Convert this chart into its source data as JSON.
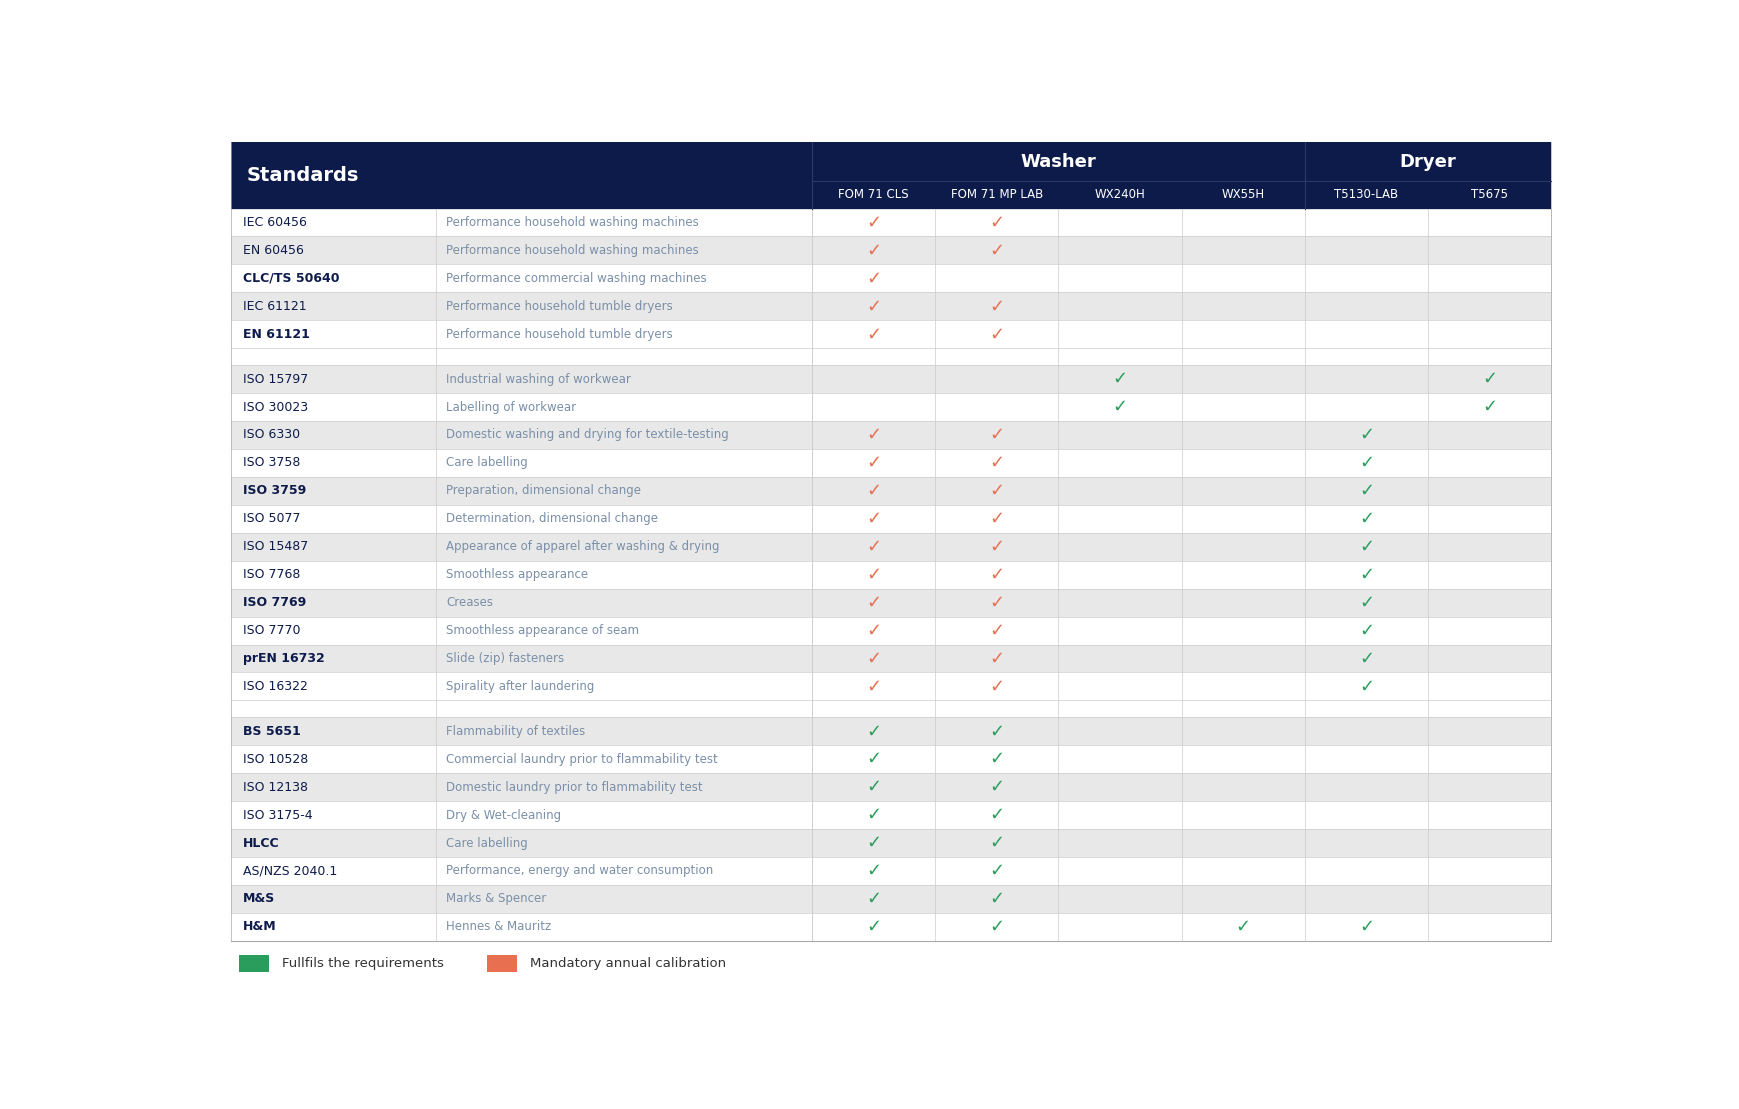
{
  "title_bg": "#0d1b4b",
  "title_text_color": "#ffffff",
  "header_text": "Standards",
  "washer_label": "Washer",
  "dryer_label": "Dryer",
  "col_headers": [
    "FOM 71 CLS",
    "FOM 71 MP LAB",
    "WX240H",
    "WX55H",
    "T5130-LAB",
    "T5675"
  ],
  "row_bg_shaded": "#e8e8e8",
  "row_bg_white": "#ffffff",
  "green_check": "#2a9d5c",
  "orange_check": "#e87050",
  "text_dark": "#0d1b4b",
  "text_desc": "#7a8fa8",
  "rows": [
    {
      "std": "IEC 60456",
      "desc": "Performance household washing machines",
      "checks": [
        "O",
        "O",
        "",
        "",
        "",
        ""
      ],
      "bold": false,
      "sep": false,
      "shade": false
    },
    {
      "std": "EN 60456",
      "desc": "Performance household washing machines",
      "checks": [
        "O",
        "O",
        "",
        "",
        "",
        ""
      ],
      "bold": false,
      "sep": false,
      "shade": true
    },
    {
      "std": "CLC/TS 50640",
      "desc": "Performance commercial washing machines",
      "checks": [
        "O",
        "",
        "",
        "",
        "",
        ""
      ],
      "bold": true,
      "sep": false,
      "shade": false
    },
    {
      "std": "IEC 61121",
      "desc": "Performance household tumble dryers",
      "checks": [
        "O",
        "O",
        "",
        "",
        "",
        ""
      ],
      "bold": false,
      "sep": false,
      "shade": true
    },
    {
      "std": "EN 61121",
      "desc": "Performance household tumble dryers",
      "checks": [
        "O",
        "O",
        "",
        "",
        "",
        ""
      ],
      "bold": true,
      "sep": false,
      "shade": false
    },
    {
      "std": "",
      "desc": "",
      "checks": [
        "",
        "",
        "",
        "",
        "",
        ""
      ],
      "bold": false,
      "sep": true,
      "shade": false
    },
    {
      "std": "ISO 15797",
      "desc": "Industrial washing of workwear",
      "checks": [
        "",
        "",
        "G",
        "",
        "",
        "G"
      ],
      "bold": false,
      "sep": false,
      "shade": true
    },
    {
      "std": "ISO 30023",
      "desc": "Labelling of workwear",
      "checks": [
        "",
        "",
        "G",
        "",
        "",
        "G"
      ],
      "bold": false,
      "sep": false,
      "shade": false
    },
    {
      "std": "ISO 6330",
      "desc": "Domestic washing and drying for textile-testing",
      "checks": [
        "O",
        "O",
        "",
        "",
        "G",
        ""
      ],
      "bold": false,
      "sep": false,
      "shade": true
    },
    {
      "std": "ISO 3758",
      "desc": "Care labelling",
      "checks": [
        "O",
        "O",
        "",
        "",
        "G",
        ""
      ],
      "bold": false,
      "sep": false,
      "shade": false
    },
    {
      "std": "ISO 3759",
      "desc": "Preparation, dimensional change",
      "checks": [
        "O",
        "O",
        "",
        "",
        "G",
        ""
      ],
      "bold": true,
      "sep": false,
      "shade": true
    },
    {
      "std": "ISO 5077",
      "desc": "Determination, dimensional change",
      "checks": [
        "O",
        "O",
        "",
        "",
        "G",
        ""
      ],
      "bold": false,
      "sep": false,
      "shade": false
    },
    {
      "std": "ISO 15487",
      "desc": "Appearance of apparel after washing & drying",
      "checks": [
        "O",
        "O",
        "",
        "",
        "G",
        ""
      ],
      "bold": false,
      "sep": false,
      "shade": true
    },
    {
      "std": "ISO 7768",
      "desc": "Smoothless appearance",
      "checks": [
        "O",
        "O",
        "",
        "",
        "G",
        ""
      ],
      "bold": false,
      "sep": false,
      "shade": false
    },
    {
      "std": "ISO 7769",
      "desc": "Creases",
      "checks": [
        "O",
        "O",
        "",
        "",
        "G",
        ""
      ],
      "bold": true,
      "sep": false,
      "shade": true
    },
    {
      "std": "ISO 7770",
      "desc": "Smoothless appearance of seam",
      "checks": [
        "O",
        "O",
        "",
        "",
        "G",
        ""
      ],
      "bold": false,
      "sep": false,
      "shade": false
    },
    {
      "std": "prEN 16732",
      "desc": "Slide (zip) fasteners",
      "checks": [
        "O",
        "O",
        "",
        "",
        "G",
        ""
      ],
      "bold": true,
      "sep": false,
      "shade": true
    },
    {
      "std": "ISO 16322",
      "desc": "Spirality after laundering",
      "checks": [
        "O",
        "O",
        "",
        "",
        "G",
        ""
      ],
      "bold": false,
      "sep": false,
      "shade": false
    },
    {
      "std": "",
      "desc": "",
      "checks": [
        "",
        "",
        "",
        "",
        "",
        ""
      ],
      "bold": false,
      "sep": true,
      "shade": false
    },
    {
      "std": "BS 5651",
      "desc": "Flammability of textiles",
      "checks": [
        "G",
        "G",
        "",
        "",
        "",
        ""
      ],
      "bold": true,
      "sep": false,
      "shade": true
    },
    {
      "std": "ISO 10528",
      "desc": "Commercial laundry prior to flammability test",
      "checks": [
        "G",
        "G",
        "",
        "",
        "",
        ""
      ],
      "bold": false,
      "sep": false,
      "shade": false
    },
    {
      "std": "ISO 12138",
      "desc": "Domestic laundry prior to flammability test",
      "checks": [
        "G",
        "G",
        "",
        "",
        "",
        ""
      ],
      "bold": false,
      "sep": false,
      "shade": true
    },
    {
      "std": "ISO 3175-4",
      "desc": "Dry & Wet-cleaning",
      "checks": [
        "G",
        "G",
        "",
        "",
        "",
        ""
      ],
      "bold": false,
      "sep": false,
      "shade": false
    },
    {
      "std": "HLCC",
      "desc": "Care labelling",
      "checks": [
        "G",
        "G",
        "",
        "",
        "",
        ""
      ],
      "bold": true,
      "sep": false,
      "shade": true
    },
    {
      "std": "AS/NZS 2040.1",
      "desc": "Performance, energy and water consumption",
      "checks": [
        "G",
        "G",
        "",
        "",
        "",
        ""
      ],
      "bold": false,
      "sep": false,
      "shade": false
    },
    {
      "std": "M&S",
      "desc": "Marks & Spencer",
      "checks": [
        "G",
        "G",
        "",
        "",
        "",
        ""
      ],
      "bold": true,
      "sep": false,
      "shade": true
    },
    {
      "std": "H&M",
      "desc": "Hennes & Mauritz",
      "checks": [
        "G",
        "G",
        "",
        "G",
        "G",
        ""
      ],
      "bold": true,
      "sep": false,
      "shade": false
    }
  ],
  "legend": [
    {
      "color": "#2a9d5c",
      "label": "Fullfils the requirements"
    },
    {
      "color": "#e87050",
      "label": "Mandatory annual calibration"
    }
  ]
}
